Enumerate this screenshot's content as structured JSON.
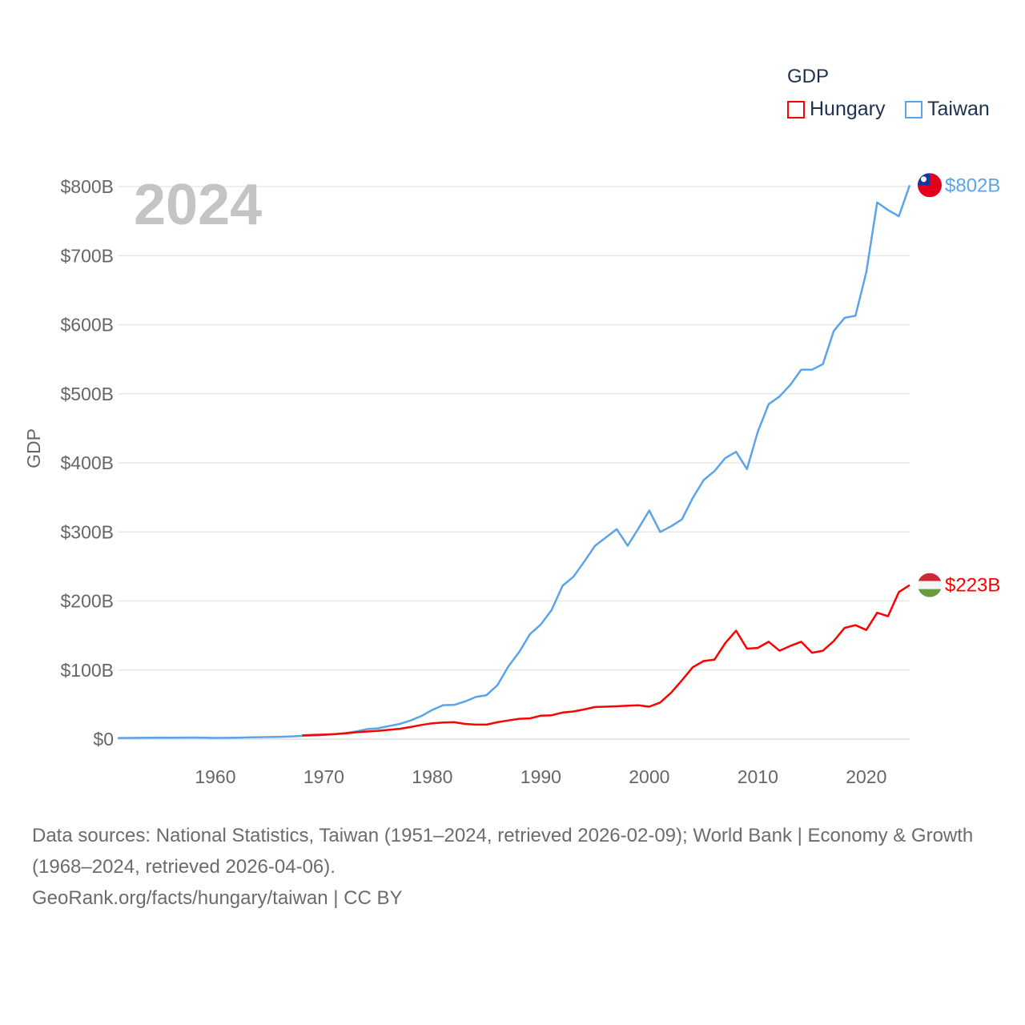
{
  "legend": {
    "title": "GDP",
    "items": [
      {
        "label": "Hungary",
        "color": "#ff0000"
      },
      {
        "label": "Taiwan",
        "color": "#5ba4ea"
      }
    ]
  },
  "year_label": "2024",
  "end_labels": {
    "taiwan": "$802B",
    "hungary": "$223B"
  },
  "footer": {
    "line1": "Data sources: National Statistics, Taiwan (1951–2024, retrieved 2026-02-09); World Bank | Economy & Growth (1968–2024, retrieved 2026-04-06).",
    "line2": "GeoRank.org/facts/hungary/taiwan | CC BY"
  },
  "chart_data": {
    "type": "line",
    "title": "GDP",
    "xlabel": "",
    "ylabel": "GDP",
    "xlim": [
      1951,
      2024
    ],
    "ylim": [
      0,
      800
    ],
    "xticks": [
      1960,
      1970,
      1980,
      1990,
      2000,
      2010,
      2020
    ],
    "yticks": [
      {
        "v": 0,
        "l": "$0"
      },
      {
        "v": 100,
        "l": "$100B"
      },
      {
        "v": 200,
        "l": "$200B"
      },
      {
        "v": 300,
        "l": "$300B"
      },
      {
        "v": 400,
        "l": "$400B"
      },
      {
        "v": 500,
        "l": "$500B"
      },
      {
        "v": 600,
        "l": "$600B"
      },
      {
        "v": 700,
        "l": "$700B"
      },
      {
        "v": 800,
        "l": "$800B"
      }
    ],
    "units": "billion USD",
    "grid": true,
    "legend_placement": "top-right",
    "series": [
      {
        "name": "Taiwan",
        "color": "#5ba4ea",
        "start": 1951,
        "values": [
          1.6,
          1.7,
          1.8,
          2.0,
          2.2,
          2.0,
          2.2,
          2.3,
          2.1,
          1.7,
          1.9,
          2.1,
          2.4,
          2.8,
          3.0,
          3.4,
          3.9,
          4.6,
          5.3,
          6.1,
          7.1,
          8.7,
          11.2,
          14.5,
          15.7,
          18.9,
          22.0,
          27.0,
          33.5,
          42.3,
          49.2,
          49.5,
          54.4,
          61.0,
          63.7,
          78.2,
          105,
          126,
          152,
          166,
          187,
          222,
          235,
          257,
          280,
          292,
          304,
          280,
          305,
          331,
          300,
          308,
          318,
          349,
          375,
          388,
          407,
          416,
          391,
          445,
          485,
          496,
          513,
          535,
          535,
          543,
          591,
          610,
          613,
          676,
          777,
          766,
          757,
          802
        ]
      },
      {
        "name": "Hungary",
        "color": "#ff0000",
        "start": 1968,
        "values": [
          5.5,
          6.0,
          6.5,
          7.2,
          8.5,
          10,
          11,
          12,
          13.5,
          15,
          17.5,
          20.5,
          23,
          24,
          24.5,
          22,
          21,
          21,
          24.5,
          27,
          29.5,
          30,
          34,
          34.5,
          38.5,
          40,
          43,
          46.5,
          47,
          47.5,
          48.5,
          49,
          47,
          53,
          67,
          85,
          104,
          113,
          115,
          139,
          157,
          131,
          132,
          141,
          128,
          135,
          141,
          125,
          128,
          142,
          161,
          165,
          158,
          183,
          178,
          213,
          223
        ]
      }
    ]
  }
}
